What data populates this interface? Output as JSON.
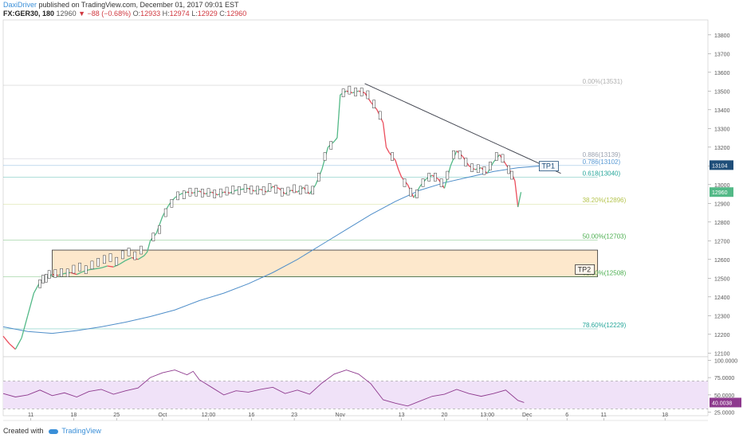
{
  "header": {
    "author": "DaxiDriver",
    "published": "published on TradingView.com, December 01, 2017 09:01 EST",
    "symbol": "FX:GER30, 180",
    "last": "12960",
    "change": "−88 (−0.68%)",
    "o_label": "O:",
    "o_value": "12933",
    "h_label": "H:",
    "h_value": "12974",
    "l_label": "L:",
    "l_value": "12929",
    "c_label": "C:",
    "c_value": "12960"
  },
  "footer": {
    "created": "Created with",
    "brand": "TradingView"
  },
  "colors": {
    "up": "#53b987",
    "down": "#eb4d5c",
    "ma": "#4f8ec9",
    "trendline": "#434651",
    "zone_fill": "#fde8cc",
    "rsi_line": "#8e3a8e",
    "rsi_band": "#f0e2f8",
    "fib_0": "#b0b0b0",
    "fib_886": "#9ca3b0",
    "fib_786": "#5b9bd5",
    "fib_618": "#26a69a",
    "fib_382": "#b5c44e",
    "fib_50": "#4caf50",
    "fib_618b": "#4caf50",
    "fib_786b": "#26a69a"
  },
  "chart_data": {
    "type": "candlestick",
    "price_axis": {
      "ylim": [
        12080,
        13880
      ],
      "ticks": [
        12100,
        12200,
        12300,
        12400,
        12500,
        12600,
        12700,
        12800,
        12900,
        13000,
        13100,
        13200,
        13300,
        13400,
        13500,
        13600,
        13700,
        13800
      ],
      "tick_labels": [
        "12100",
        "12200",
        "12300",
        "12400",
        "12500",
        "12600",
        "12700",
        "12800",
        "12900",
        "13000",
        "13100",
        "13200",
        "13300",
        "13400",
        "13500",
        "13600",
        "13700",
        "13800"
      ],
      "price_badges": [
        {
          "value": 13104,
          "label": "13104",
          "color": "#1f4e79"
        },
        {
          "value": 12960,
          "label": "12960",
          "color": "#53b987"
        }
      ]
    },
    "time_axis": {
      "labels": [
        "11",
        "18",
        "25",
        "Oct",
        "12:00",
        "16",
        "23",
        "Nov",
        "13",
        "20",
        "13:00",
        "Dec",
        "6",
        "11",
        "18"
      ],
      "positions": [
        9,
        23,
        37,
        52,
        67,
        81,
        95,
        110,
        130,
        144,
        158,
        171,
        184,
        196,
        216
      ]
    },
    "fib_levels": [
      {
        "label": "0.00%(13531)",
        "value": 13531,
        "color_key": "fib_0"
      },
      {
        "label": "0.886(13139)",
        "value": 13139,
        "color_key": "fib_886"
      },
      {
        "label": "0.786(13102)",
        "value": 13102,
        "color_key": "fib_786"
      },
      {
        "label": "0.618(13040)",
        "value": 13040,
        "color_key": "fib_618"
      },
      {
        "label": "38.20%(12896)",
        "value": 12896,
        "color_key": "fib_382"
      },
      {
        "label": "50.00%(12703)",
        "value": 12703,
        "color_key": "fib_50"
      },
      {
        "label": "61.80%(12508)",
        "value": 12508,
        "color_key": "fib_618b"
      },
      {
        "label": "78.60%(12229)",
        "value": 12229,
        "color_key": "fib_786b"
      }
    ],
    "zone": {
      "label": "TP2",
      "low": 12508,
      "high": 12650,
      "x_start": 16,
      "x_end": 194
    },
    "trendline": {
      "points": [
        [
          118,
          13540
        ],
        [
          182,
          13060
        ]
      ],
      "label": "TP1"
    },
    "tp1_label_at": {
      "x": 176,
      "y": 13090
    },
    "price_path": [
      [
        0,
        12190
      ],
      [
        2,
        12150
      ],
      [
        4,
        12120
      ],
      [
        6,
        12180
      ],
      [
        8,
        12300
      ],
      [
        10,
        12420
      ],
      [
        12,
        12480
      ],
      [
        14,
        12500
      ],
      [
        16,
        12520
      ],
      [
        18,
        12515
      ],
      [
        20,
        12525
      ],
      [
        22,
        12530
      ],
      [
        24,
        12520
      ],
      [
        26,
        12535
      ],
      [
        28,
        12545
      ],
      [
        30,
        12550
      ],
      [
        32,
        12555
      ],
      [
        34,
        12565
      ],
      [
        36,
        12560
      ],
      [
        38,
        12575
      ],
      [
        40,
        12595
      ],
      [
        42,
        12610
      ],
      [
        44,
        12600
      ],
      [
        46,
        12620
      ],
      [
        47,
        12640
      ],
      [
        48,
        12700
      ],
      [
        50,
        12740
      ],
      [
        52,
        12830
      ],
      [
        54,
        12890
      ],
      [
        56,
        12930
      ],
      [
        58,
        12950
      ],
      [
        60,
        12960
      ],
      [
        62,
        12955
      ],
      [
        64,
        12965
      ],
      [
        66,
        12950
      ],
      [
        68,
        12960
      ],
      [
        70,
        12945
      ],
      [
        72,
        12960
      ],
      [
        74,
        12955
      ],
      [
        76,
        12970
      ],
      [
        78,
        12975
      ],
      [
        80,
        12980
      ],
      [
        82,
        12965
      ],
      [
        84,
        12975
      ],
      [
        86,
        12960
      ],
      [
        88,
        12990
      ],
      [
        90,
        12980
      ],
      [
        92,
        12950
      ],
      [
        94,
        12970
      ],
      [
        96,
        12960
      ],
      [
        98,
        12985
      ],
      [
        100,
        12950
      ],
      [
        102,
        13000
      ],
      [
        104,
        13080
      ],
      [
        106,
        13200
      ],
      [
        108,
        13230
      ],
      [
        109,
        13250
      ],
      [
        110,
        13480
      ],
      [
        112,
        13500
      ],
      [
        114,
        13490
      ],
      [
        116,
        13500
      ],
      [
        118,
        13490
      ],
      [
        120,
        13440
      ],
      [
        121,
        13420
      ],
      [
        122,
        13400
      ],
      [
        124,
        13330
      ],
      [
        125,
        13200
      ],
      [
        126,
        13170
      ],
      [
        128,
        13130
      ],
      [
        129,
        13080
      ],
      [
        130,
        13040
      ],
      [
        132,
        13000
      ],
      [
        134,
        12930
      ],
      [
        136,
        12990
      ],
      [
        138,
        13030
      ],
      [
        140,
        13050
      ],
      [
        142,
        13030
      ],
      [
        144,
        12980
      ],
      [
        146,
        13100
      ],
      [
        148,
        13180
      ],
      [
        150,
        13150
      ],
      [
        152,
        13100
      ],
      [
        154,
        13080
      ],
      [
        156,
        13090
      ],
      [
        158,
        13060
      ],
      [
        160,
        13120
      ],
      [
        162,
        13160
      ],
      [
        164,
        13110
      ],
      [
        166,
        13060
      ],
      [
        167,
        13020
      ],
      [
        168,
        12880
      ],
      [
        169,
        12960
      ]
    ],
    "candles": [
      [
        12,
        12470
      ],
      [
        13,
        12495
      ],
      [
        14,
        12500
      ],
      [
        15,
        12520
      ],
      [
        17,
        12525
      ],
      [
        19,
        12530
      ],
      [
        21,
        12528
      ],
      [
        23,
        12548
      ],
      [
        25,
        12560
      ],
      [
        27,
        12545
      ],
      [
        29,
        12570
      ],
      [
        31,
        12585
      ],
      [
        33,
        12600
      ],
      [
        35,
        12610
      ],
      [
        37,
        12590
      ],
      [
        39,
        12625
      ],
      [
        41,
        12640
      ],
      [
        43,
        12620
      ],
      [
        45,
        12650
      ],
      [
        49,
        12720
      ],
      [
        51,
        12760
      ],
      [
        53,
        12850
      ],
      [
        55,
        12900
      ],
      [
        57,
        12940
      ],
      [
        59,
        12945
      ],
      [
        61,
        12960
      ],
      [
        63,
        12960
      ],
      [
        65,
        12955
      ],
      [
        67,
        12958
      ],
      [
        69,
        12950
      ],
      [
        71,
        12956
      ],
      [
        73,
        12965
      ],
      [
        75,
        12972
      ],
      [
        77,
        12968
      ],
      [
        79,
        12980
      ],
      [
        81,
        12972
      ],
      [
        83,
        12970
      ],
      [
        85,
        12968
      ],
      [
        87,
        12985
      ],
      [
        89,
        12975
      ],
      [
        91,
        12960
      ],
      [
        93,
        12965
      ],
      [
        95,
        12978
      ],
      [
        97,
        12970
      ],
      [
        99,
        12975
      ],
      [
        101,
        12970
      ],
      [
        103,
        13040
      ],
      [
        105,
        13150
      ],
      [
        107,
        13210
      ],
      [
        111,
        13490
      ],
      [
        113,
        13505
      ],
      [
        115,
        13495
      ],
      [
        117,
        13495
      ],
      [
        119,
        13480
      ],
      [
        121,
        13430
      ],
      [
        123,
        13370
      ],
      [
        127,
        13150
      ],
      [
        131,
        13010
      ],
      [
        133,
        12960
      ],
      [
        135,
        12950
      ],
      [
        137,
        13010
      ],
      [
        139,
        13040
      ],
      [
        141,
        13040
      ],
      [
        143,
        13010
      ],
      [
        145,
        13050
      ],
      [
        147,
        13160
      ],
      [
        149,
        13160
      ],
      [
        151,
        13120
      ],
      [
        153,
        13090
      ],
      [
        155,
        13085
      ],
      [
        157,
        13075
      ],
      [
        159,
        13100
      ],
      [
        161,
        13150
      ],
      [
        163,
        13140
      ],
      [
        165,
        13080
      ],
      [
        166,
        13050
      ]
    ],
    "ma_path": [
      [
        0,
        12240
      ],
      [
        8,
        12215
      ],
      [
        16,
        12205
      ],
      [
        24,
        12220
      ],
      [
        32,
        12240
      ],
      [
        40,
        12265
      ],
      [
        48,
        12295
      ],
      [
        56,
        12330
      ],
      [
        64,
        12380
      ],
      [
        72,
        12420
      ],
      [
        80,
        12470
      ],
      [
        88,
        12530
      ],
      [
        96,
        12600
      ],
      [
        104,
        12680
      ],
      [
        112,
        12760
      ],
      [
        120,
        12840
      ],
      [
        128,
        12910
      ],
      [
        136,
        12970
      ],
      [
        144,
        13010
      ],
      [
        152,
        13040
      ],
      [
        160,
        13070
      ],
      [
        168,
        13090
      ],
      [
        176,
        13100
      ]
    ],
    "rsi": {
      "ylim": [
        20,
        105
      ],
      "ticks": [
        25,
        50,
        75,
        100
      ],
      "tick_labels": [
        "25.0000",
        "50.0000",
        "75.0000",
        "100.0000"
      ],
      "band": [
        30,
        70
      ],
      "last_label": "40.0038",
      "path": [
        [
          0,
          52
        ],
        [
          4,
          47
        ],
        [
          8,
          50
        ],
        [
          12,
          57
        ],
        [
          16,
          49
        ],
        [
          20,
          53
        ],
        [
          24,
          47
        ],
        [
          28,
          55
        ],
        [
          32,
          58
        ],
        [
          36,
          51
        ],
        [
          40,
          56
        ],
        [
          44,
          60
        ],
        [
          48,
          75
        ],
        [
          52,
          82
        ],
        [
          56,
          86
        ],
        [
          60,
          79
        ],
        [
          62,
          84
        ],
        [
          64,
          72
        ],
        [
          68,
          61
        ],
        [
          72,
          50
        ],
        [
          76,
          56
        ],
        [
          80,
          54
        ],
        [
          84,
          58
        ],
        [
          88,
          61
        ],
        [
          92,
          52
        ],
        [
          96,
          57
        ],
        [
          100,
          51
        ],
        [
          104,
          67
        ],
        [
          108,
          80
        ],
        [
          112,
          86
        ],
        [
          116,
          80
        ],
        [
          120,
          66
        ],
        [
          124,
          43
        ],
        [
          128,
          38
        ],
        [
          132,
          34
        ],
        [
          136,
          41
        ],
        [
          140,
          48
        ],
        [
          144,
          51
        ],
        [
          148,
          58
        ],
        [
          152,
          52
        ],
        [
          156,
          48
        ],
        [
          160,
          52
        ],
        [
          164,
          57
        ],
        [
          168,
          42
        ],
        [
          170,
          39
        ]
      ]
    }
  }
}
